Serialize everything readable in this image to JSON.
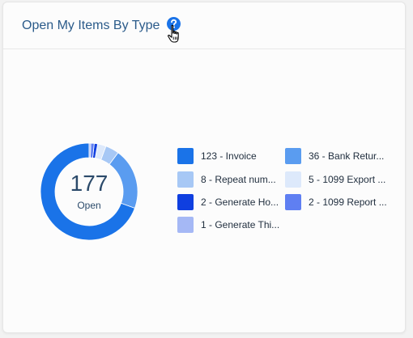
{
  "widget": {
    "title": "Open My Items By Type",
    "help_icon": "help-icon",
    "cursor_icon": "hand-pointer-icon"
  },
  "donut": {
    "total": "177",
    "total_label": "Open",
    "ring_color": "#1a73e8"
  },
  "legend": [
    {
      "label": "123 - Invoice",
      "color": "#1a73e8"
    },
    {
      "label": "36 - Bank Retur...",
      "color": "#5a9cf0"
    },
    {
      "label": "8 - Repeat num...",
      "color": "#a7c8f5"
    },
    {
      "label": "5 - 1099 Export ...",
      "color": "#dde9fb"
    },
    {
      "label": "2 - Generate Ho...",
      "color": "#0f3fe0"
    },
    {
      "label": "2 - 1099 Report ...",
      "color": "#5f7ff2"
    },
    {
      "label": "1 - Generate Thi...",
      "color": "#a5b8f5"
    }
  ],
  "chart_data": {
    "type": "pie",
    "categories": [
      "123 - Invoice",
      "36 - Bank Retur...",
      "8 - Repeat num...",
      "5 - 1099 Export ...",
      "2 - Generate Ho...",
      "2 - 1099 Report ...",
      "1 - Generate Thi..."
    ],
    "values": [
      123,
      36,
      8,
      5,
      2,
      2,
      1
    ],
    "colors": [
      "#1a73e8",
      "#5a9cf0",
      "#a7c8f5",
      "#dde9fb",
      "#0f3fe0",
      "#5f7ff2",
      "#a5b8f5"
    ],
    "center_total": 177,
    "center_label": "Open",
    "legend_position": "right"
  }
}
